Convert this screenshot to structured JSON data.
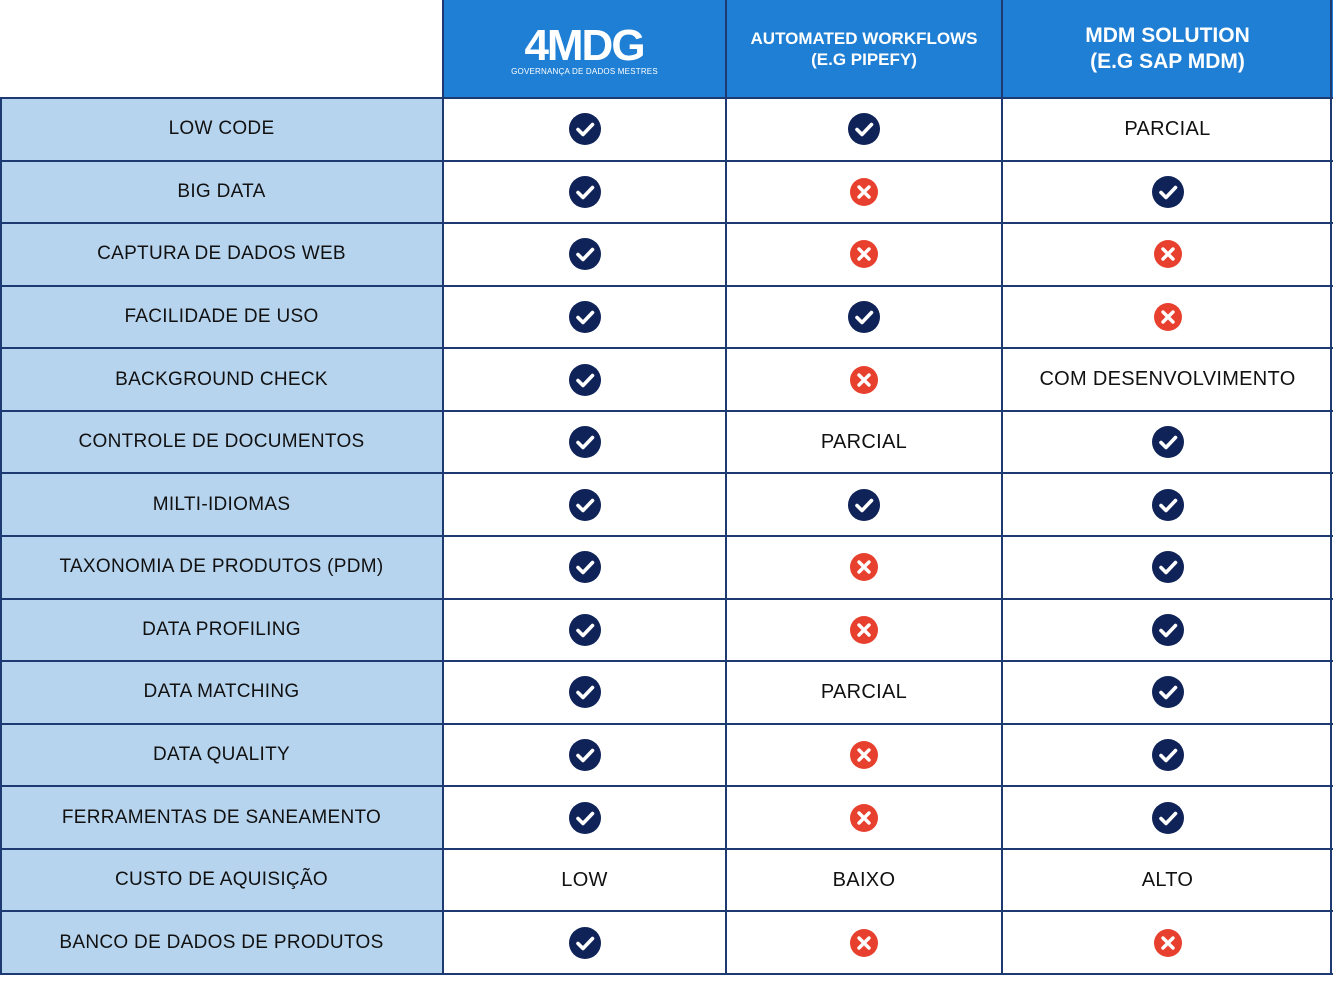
{
  "colors": {
    "header_bg": "#1f7fd4",
    "feature_bg": "#b7d4ef",
    "border": "#1d3a73",
    "check": "#0f2358",
    "cross": "#e8402f"
  },
  "header": {
    "logo": {
      "wordmark": "4MDG",
      "tagline": "GOVERNANÇA DE DADOS MESTRES"
    },
    "columns": [
      {
        "line1": "AUTOMATED WORKFLOWS",
        "line2": "(E.G PIPEFY)"
      },
      {
        "line1": "MDM SOLUTION",
        "line2": "(E.G SAP MDM)"
      }
    ]
  },
  "table": {
    "rows": [
      {
        "feature": "LOW CODE",
        "values": [
          "check",
          "check",
          "PARCIAL"
        ]
      },
      {
        "feature": "BIG DATA",
        "values": [
          "check",
          "cross",
          "check"
        ]
      },
      {
        "feature": "CAPTURA DE DADOS WEB",
        "values": [
          "check",
          "cross",
          "cross"
        ]
      },
      {
        "feature": "FACILIDADE DE USO",
        "values": [
          "check",
          "check",
          "cross"
        ]
      },
      {
        "feature": "BACKGROUND CHECK",
        "values": [
          "check",
          "cross",
          "COM DESENVOLVIMENTO"
        ]
      },
      {
        "feature": "CONTROLE DE DOCUMENTOS",
        "values": [
          "check",
          "PARCIAL",
          "check"
        ]
      },
      {
        "feature": "MILTI-IDIOMAS",
        "values": [
          "check",
          "check",
          "check"
        ]
      },
      {
        "feature": "TAXONOMIA DE PRODUTOS (PDM)",
        "values": [
          "check",
          "cross",
          "check"
        ]
      },
      {
        "feature": "DATA PROFILING",
        "values": [
          "check",
          "cross",
          "check"
        ]
      },
      {
        "feature": "DATA MATCHING",
        "values": [
          "check",
          "PARCIAL",
          "check"
        ]
      },
      {
        "feature": "DATA QUALITY",
        "values": [
          "check",
          "cross",
          "check"
        ]
      },
      {
        "feature": "FERRAMENTAS DE SANEAMENTO",
        "values": [
          "check",
          "cross",
          "check"
        ]
      },
      {
        "feature": "CUSTO DE AQUISIÇÃO",
        "values": [
          "LOW",
          "BAIXO",
          "ALTO"
        ]
      },
      {
        "feature": "BANCO DE DADOS DE PRODUTOS",
        "values": [
          "check",
          "cross",
          "cross"
        ]
      }
    ]
  }
}
